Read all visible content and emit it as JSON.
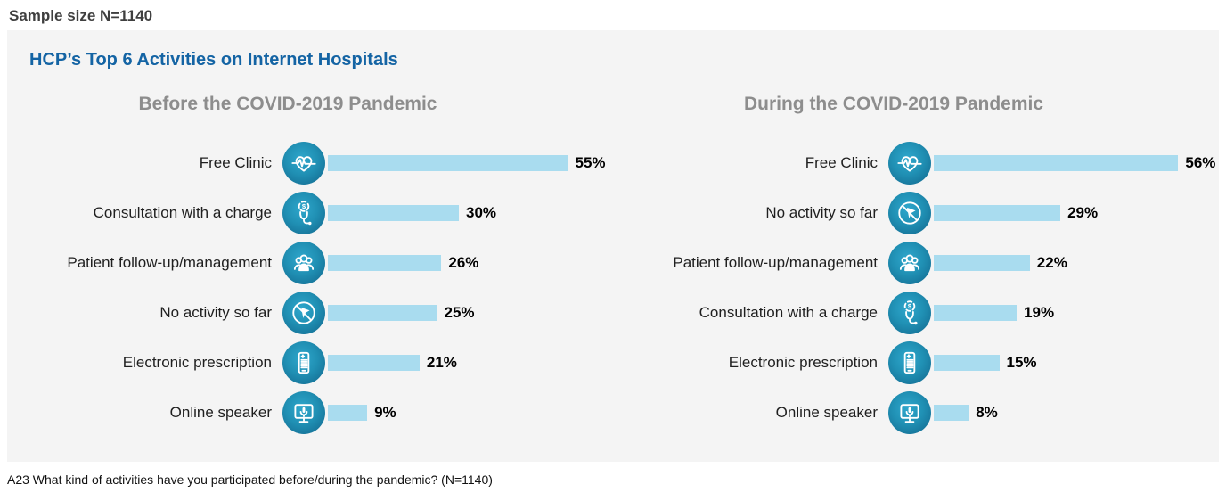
{
  "page": {
    "sample_size": "Sample size N=1140",
    "title": "HCP’s Top 6 Activities on Internet Hospitals",
    "footnote": "A23 What kind of activities have you participated before/during the pandemic? (N=1140)"
  },
  "colors": {
    "title_blue": "#1464a4",
    "section_header_gray": "#8d8d8d",
    "bar_fill": "#a9dcef",
    "icon_circle_teal_dark": "#11648a",
    "icon_circle_teal_light": "#2fa7cc",
    "panel_background": "#f4f4f4"
  },
  "chart_data": [
    {
      "type": "bar",
      "orientation": "horizontal",
      "title": "Before the COVID-2019 Pandemic",
      "unit": "%",
      "xlim": [
        0,
        60
      ],
      "categories": [
        "Free Clinic",
        "Consultation with a charge",
        "Patient follow-up/management",
        "No activity so far",
        "Electronic prescription",
        "Online speaker"
      ],
      "values": [
        55,
        30,
        26,
        25,
        21,
        9
      ],
      "icons": [
        "heart-pulse-icon",
        "stethoscope-fee-icon",
        "patient-group-icon",
        "no-activity-icon",
        "e-prescription-phone-icon",
        "online-speaker-monitor-icon"
      ]
    },
    {
      "type": "bar",
      "orientation": "horizontal",
      "title": "During the COVID-2019 Pandemic",
      "unit": "%",
      "xlim": [
        0,
        60
      ],
      "categories": [
        "Free Clinic",
        "No activity so far",
        "Patient follow-up/management",
        "Consultation with a charge",
        "Electronic prescription",
        "Online speaker"
      ],
      "values": [
        56,
        29,
        22,
        19,
        15,
        8
      ],
      "icons": [
        "heart-pulse-icon",
        "no-activity-icon",
        "patient-group-icon",
        "stethoscope-fee-icon",
        "e-prescription-phone-icon",
        "online-speaker-monitor-icon"
      ]
    }
  ]
}
